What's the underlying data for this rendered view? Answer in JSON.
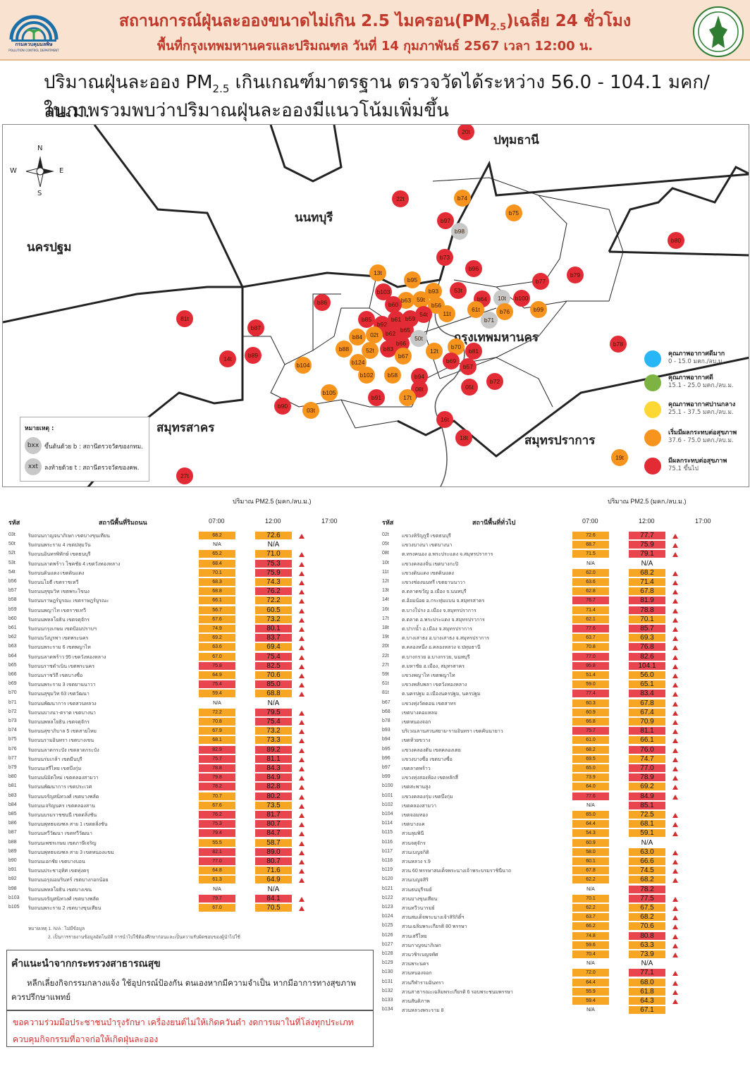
{
  "header": {
    "title": "สถานการณ์ฝุ่นละอองขนาดไม่เกิน 2.5 ไมครอน(PM2.5)เฉลี่ย 24 ชั่วโมง",
    "title_pre": "สถานการณ์ฝุ่นละอองขนาดไม่เกิน 2.5 ไมครอน(PM",
    "title_sub": "2.5",
    "title_post": ")เฉลี่ย 24 ชั่วโมง",
    "subtitle": "พื้นที่กรุงเทพมหานครและปริมณฑล วันที่ 14 กุมภาพันธ์ 2567 เวลา 12:00 น.",
    "logo_left_text": "กรมควบคุมมลพิษ",
    "logo_left_sub": "POLLUTION CONTROL DEPARTMENT"
  },
  "summary": {
    "line1_pre": "ปริมาณฝุ่นละออง PM",
    "line1_sub": "2.5",
    "line1_post": " เกินเกณฑ์มาตรฐาน ตรวจวัดได้ระหว่าง 56.0 - 104.1 มคก/ลบ.ม.",
    "line2": "ในภาพรวมพบว่าปริมาณฝุ่นละอองมีแนวโน้มเพิ่มขึ้น"
  },
  "map": {
    "compass": {
      "n": "N",
      "s": "S",
      "e": "E",
      "w": "W"
    },
    "provinces": [
      {
        "name": "ปทุมธานี"
      },
      {
        "name": "นนทบุรี"
      },
      {
        "name": "นครปฐม"
      },
      {
        "name": "กรุงเทพมหานคร"
      },
      {
        "name": "สมุทรสาคร"
      },
      {
        "name": "สมุทรปราการ"
      }
    ],
    "legend": [
      {
        "label": "คุณภาพอากาศดีมาก",
        "range": "0 - 15.0 มคก./ลบ.ม.",
        "color": "#29b6f6"
      },
      {
        "label": "คุณภาพอากาศดี",
        "range": "15.1 - 25.0 มคก./ลบ.ม.",
        "color": "#7cb342"
      },
      {
        "label": "คุณภาพอากาศปานกลาง",
        "range": "25.1 - 37.5 มคก./ลบ.ม.",
        "color": "#fdd835"
      },
      {
        "label": "เริ่มมีผลกระทบต่อสุขภาพ",
        "range": "37.6 - 75.0 มคก./ลบ.ม.",
        "color": "#f7941d"
      },
      {
        "label": "มีผลกระทบต่อสุขภาพ",
        "range": "75.1 ขึ้นไป",
        "color": "#e32b36"
      }
    ],
    "note": {
      "title": "หมายเหตุ :",
      "bxx": "bxx",
      "bxx_text": "ขึ้นต้นด้วย b : สถานีตรวจวัดของกทม.",
      "xxt": "xxt",
      "xxt_text": "ลงท้ายด้วย t : สถานีตรวจวัดของคพ."
    },
    "stations": [
      "20t",
      "22t",
      "b74",
      "b75",
      "b97",
      "b98",
      "b103",
      "b80",
      "b73",
      "b96",
      "13t",
      "b95",
      "b93",
      "53t",
      "b79",
      "b77",
      "b86",
      "b63",
      "59t",
      "b56",
      "b64",
      "10t",
      "b100",
      "b99",
      "81t",
      "b60",
      "b61",
      "b59",
      "54t",
      "11t",
      "61t",
      "b76",
      "b87",
      "b85",
      "b92",
      "b65",
      "b62",
      "b71",
      "02t",
      "b84",
      "50t",
      "b70",
      "b81",
      "b78",
      "b88",
      "b83",
      "b66",
      "52t",
      "12t",
      "14t",
      "b89",
      "b67",
      "b69",
      "b104",
      "b124",
      "b57",
      "b102",
      "b58",
      "b94",
      "b72",
      "05t",
      "b105",
      "08t",
      "b90",
      "03t",
      "b91",
      "17t",
      "16t",
      "18t",
      "19t",
      "27t"
    ]
  },
  "units": "ปริมาณ PM2.5 (มคก./ลบ.ม.)",
  "roadside": {
    "col_code": "รหัส",
    "col_station": "สถานีพื้นที่ริมถนน",
    "col_07": "07:00",
    "col_12": "12:00",
    "col_17": "17:00",
    "rows": [
      [
        "03t",
        "ริมถนนกาญจนาภิเษก เขตบางขุนเทียน",
        "68.2",
        "72.6"
      ],
      [
        "50t",
        "ริมถนนพระราม 4 เขตปทุมวัน",
        "N/A",
        "N/A"
      ],
      [
        "52t",
        "ริมถนนอินทรพิทักษ์ เขตธนบุรี",
        "65.2",
        "71.0"
      ],
      [
        "53t",
        "ริมถนนลาดพร้าว โชคชัย 4 เขตวังทองหลาง",
        "68.4",
        "75.3"
      ],
      [
        "54t",
        "ริมถนนดินแดง เขตดินแดง",
        "70.1",
        "75.9"
      ],
      [
        "b56",
        "ริมถนนโยธี เขตราชเทวี",
        "68.3",
        "74.3"
      ],
      [
        "b57",
        "ริมถนนสุขุมวิท เขตพระโขนง",
        "68.8",
        "76.2"
      ],
      [
        "b58",
        "ริมถนนราษฎร์บูรณะ เขตราษฎร์บูรณะ",
        "66.1",
        "72.2"
      ],
      [
        "b59",
        "ริมถนนพญาไท เขตราชเทวี",
        "56.7",
        "60.5"
      ],
      [
        "b60",
        "ริมถนนพหลโยธิน เขตจตุจักร",
        "67.6",
        "73.2"
      ],
      [
        "b61",
        "ริมถนนกรุงเกษม เขตป้อมปราบฯ",
        "74.9",
        "80.1"
      ],
      [
        "b62",
        "ริมถนนวังบูรพา เขตพระนคร",
        "69.2",
        "83.7"
      ],
      [
        "b63",
        "ริมถนนพระราม 6 เขตพญาไท",
        "63.6",
        "69.4"
      ],
      [
        "b64",
        "ริมถนนลาดพร้าว 95 เขตวังทองหลาง",
        "67.0",
        "75.4"
      ],
      [
        "b65",
        "ริมถนนราชดำเนิน เขตพระนคร",
        "75.8",
        "82.5"
      ],
      [
        "b66",
        "ริมถนนราชวิถี เขตบางซื่อ",
        "64.9",
        "70.6"
      ],
      [
        "b69",
        "ริมถนนพระราม 3 เขตยานนาวา",
        "75.4",
        "85.0"
      ],
      [
        "b70",
        "ริมถนนสุขุมวิท 63 เขตวัฒนา",
        "59.4",
        "68.8"
      ],
      [
        "b71",
        "ริมถนนพัฒนาการ เขตสวนหลวง",
        "N/A",
        "N/A"
      ],
      [
        "b72",
        "ริมถนนบางนา-ตราด เขตบางนา",
        "72.2",
        "79.5"
      ],
      [
        "b73",
        "ริมถนนพหลโยธิน เขตจตุจักร",
        "70.8",
        "75.4"
      ],
      [
        "b74",
        "ริมถนนสุขาภิบาล 5 เขตสายไหม",
        "67.9",
        "73.2"
      ],
      [
        "b75",
        "ริมถนนรามอินทรา เขตบางเขน",
        "68.1",
        "73.3"
      ],
      [
        "b76",
        "ริมถนนลาดกระบัง เขตลาดกระบัง",
        "82.9",
        "89.2"
      ],
      [
        "b77",
        "ริมถนนร่มเกล้า เขตมีนบุรี",
        "75.7",
        "81.1"
      ],
      [
        "b79",
        "ริมถนนเสรีไทย เขตบึงกุ่ม",
        "78.8",
        "84.3"
      ],
      [
        "b80",
        "ริมถนนนิมิตใหม่ เขตคลองสามวา",
        "79.8",
        "84.9"
      ],
      [
        "b81",
        "ริมถนนพัฒนาการ เขตประเวศ",
        "78.2",
        "82.8"
      ],
      [
        "b83",
        "ริมถนนจรัญสนิทวงศ์ เขตบางพลัด",
        "70.7",
        "80.2"
      ],
      [
        "b84",
        "ริมถนนเจริญนคร เขตคลองสาน",
        "67.6",
        "73.5"
      ],
      [
        "b85",
        "ริมถนนบรมราชชนนี เขตตลิ่งชัน",
        "76.2",
        "81.7"
      ],
      [
        "b86",
        "ริมถนนพุทธมณฑล สาย 1 เขตตลิ่งชัน",
        "75.3",
        "80.7"
      ],
      [
        "b87",
        "ริมถนนทวีวัฒนา เขตทวีวัฒนา",
        "79.4",
        "84.7"
      ],
      [
        "b88",
        "ริมถนนเพชรเกษม เขตภาษีเจริญ",
        "55.5",
        "58.7"
      ],
      [
        "b89",
        "ริมถนนพุทธมณฑล สาย 3 เขตหนองแขม",
        "82.1",
        "89.0"
      ],
      [
        "b90",
        "ริมถนนเอกชัย เขตบางบอน",
        "77.0",
        "80.7"
      ],
      [
        "b91",
        "ริมถนนประชาอุทิศ เขตทุ่งครุ",
        "64.8",
        "71.6"
      ],
      [
        "b92",
        "ริมถนนอรุณอมรินทร์ เขตบางกอกน้อย",
        "61.3",
        "64.9"
      ],
      [
        "b98",
        "ริมถนนพหลโยธิน เขตบางเขน",
        "N/A",
        "N/A"
      ],
      [
        "b103",
        "ริมถนนจรัญสนิทวงศ์ เขตบางพลัด",
        "79.7",
        "84.1"
      ],
      [
        "b105",
        "ริมถนนพระราม 2 เขตบางขุนเทียน",
        "67.0",
        "70.5"
      ]
    ],
    "footnote1": "หมายเหตุ 1. N/A : ไม่มีข้อมูล",
    "footnote2": "2. เป็นการรายงานข้อมูลอัตโนมัติ การนำไปใช้ต้องศึกษาก่อนและเป็นความรับผิดชอบของผู้นำไปใช้"
  },
  "general": {
    "col_code": "รหัส",
    "col_station": "สถานีพื้นที่ทั่วไป",
    "col_07": "07:00",
    "col_12": "12:00",
    "col_17": "17:00",
    "rows": [
      [
        "02t",
        "แขวงหิรัญรูจี เขตธนบุรี",
        "72.6",
        "77.7"
      ],
      [
        "05t",
        "แขวงบางนา เขตบางนา",
        "68.7",
        "75.9"
      ],
      [
        "08t",
        "ต.ทรงคนอง อ.พระประแดง จ.สมุทรปราการ",
        "71.5",
        "79.1"
      ],
      [
        "10t",
        "แขวงคลองจั่น เขตบางกะปิ",
        "N/A",
        "N/A"
      ],
      [
        "11t",
        "แขวงดินแดง เขตดินแดง",
        "62.0",
        "68.2"
      ],
      [
        "12t",
        "แขวงช่องนนทรี เขตยานนาวา",
        "63.6",
        "71.4"
      ],
      [
        "13t",
        "ต.ตลาดขวัญ อ.เมือง จ.นนทบุรี",
        "62.8",
        "67.8"
      ],
      [
        "14t",
        "ต.อ้อมน้อย อ.กระทุ่มแบน จ.สมุทรสาคร",
        "76.7",
        "81.9"
      ],
      [
        "16t",
        "ต.บางโปรง อ.เมือง จ.สมุทรปราการ",
        "71.4",
        "78.8"
      ],
      [
        "17t",
        "ต.ตลาด อ.พระประแดง จ.สมุทรปราการ",
        "62.1",
        "70.1"
      ],
      [
        "18t",
        "ต.ปากน้ำ อ.เมือง จ.สมุทรปราการ",
        "77.6",
        "85.7"
      ],
      [
        "19t",
        "ต.บางเสาธง อ.บางเสาธง จ.สมุทรปราการ",
        "63.7",
        "69.3"
      ],
      [
        "20t",
        "ต.คลองหนึ่ง อ.คลองหลวง จ.ปทุมธานี",
        "70.8",
        "76.8"
      ],
      [
        "22t",
        "ต.บางกรวย อ.บางกรวย, นนทบุรี",
        "77.0",
        "82.6"
      ],
      [
        "27t",
        "ต.มหาชัย อ.เมือง, สมุทรสาคร",
        "95.8",
        "104.1"
      ],
      [
        "59t",
        "แขวงพญาไท เขตพญาไท",
        "51.4",
        "56.0"
      ],
      [
        "61t",
        "แขวงพลับพลา เขตวังทองหลาง",
        "59.0",
        "65.1"
      ],
      [
        "81t",
        "ต.นครปฐม อ.เมืองนครปฐม, นครปฐม",
        "77.4",
        "83.4"
      ],
      [
        "b67",
        "แขวงทุ่งวัดดอน เขตสาทร",
        "60.3",
        "67.8"
      ],
      [
        "b68",
        "เขตบางคอแหลม",
        "60.9",
        "67.4"
      ],
      [
        "b78",
        "เขตหนองจอก",
        "66.8",
        "70.9"
      ],
      [
        "b93",
        "บริเวณลานสวนสยาม-รามอินทรา เขตคันนายาว",
        "75.7",
        "81.1"
      ],
      [
        "b94",
        "เขตห้วยขวาง",
        "61.0",
        "66.1"
      ],
      [
        "b95",
        "แขวงคลองตัน เขตคลองเตย",
        "68.2",
        "76.0"
      ],
      [
        "b96",
        "แขวงบางซื่อ เขตบางซื่อ",
        "69.5",
        "74.7"
      ],
      [
        "b97",
        "เขตลาดพร้าว",
        "65.0",
        "77.0"
      ],
      [
        "b99",
        "แขวงทุ่งสองห้อง เขตหลักสี่",
        "73.9",
        "78.9"
      ],
      [
        "b100",
        "เขตสะพานสูง",
        "64.0",
        "69.2"
      ],
      [
        "b101",
        "แขวงคลองกุ่ม เขตบึงกุ่ม",
        "77.6",
        "84.9"
      ],
      [
        "b102",
        "เขตคลองสามวา",
        "N/A",
        "85.1"
      ],
      [
        "b104",
        "เขตจอมทอง",
        "65.0",
        "72.5"
      ],
      [
        "b114",
        "เขตบางแค",
        "64.4",
        "68.1"
      ],
      [
        "b115",
        "สวนลุมพินี",
        "54.3",
        "59.1"
      ],
      [
        "b116",
        "สวนจตุจักร",
        "60.9",
        "N/A"
      ],
      [
        "b117",
        "สวนเบญจกิติ",
        "58.0",
        "63.0"
      ],
      [
        "b118",
        "สวนหลวง ร.9",
        "60.1",
        "66.6"
      ],
      [
        "b119",
        "สวน 60 พรรษาสมเด็จพระนางเจ้าพระบรมราชินีนาถ",
        "67.8",
        "74.5"
      ],
      [
        "b120",
        "สวนเบญจสิริ",
        "62.2",
        "68.2"
      ],
      [
        "b121",
        "สวนธนบุรีรมย์",
        "N/A",
        "78.2"
      ],
      [
        "b122",
        "สวนบางขุนเทียน",
        "70.1",
        "77.5"
      ],
      [
        "b123",
        "สวนทวีวนารมย์",
        "62.2",
        "67.5"
      ],
      [
        "b124",
        "สวนสมเด็จพระนางเจ้าสิริกิติ์ฯ",
        "63.7",
        "68.2"
      ],
      [
        "b125",
        "สวนเฉลิมพระเกียรติ 80 พรรษา",
        "66.2",
        "70.6"
      ],
      [
        "b126",
        "สวนเสรีไทย",
        "74.8",
        "80.8"
      ],
      [
        "b127",
        "สวนกาญจนาภิเษก",
        "59.6",
        "63.3"
      ],
      [
        "b128",
        "สวนวชิรเบญจทัศ",
        "70.4",
        "73.9"
      ],
      [
        "b129",
        "สวนพระนคร",
        "N/A",
        "N/A"
      ],
      [
        "b130",
        "สวนหนองจอก",
        "72.0",
        "77.1"
      ],
      [
        "b131",
        "สวนกีฬารามอินทรา",
        "64.4",
        "68.0"
      ],
      [
        "b132",
        "สวนสาธารณะเฉลิมพระเกียรติ 6 รอบพระชนมพรรษา",
        "55.9",
        "61.8"
      ],
      [
        "b133",
        "สวนสันติภาพ",
        "59.4",
        "64.3"
      ],
      [
        "b134",
        "สวนหลวงพระราม 8",
        "N/A",
        "67.1"
      ]
    ]
  },
  "advice": {
    "title": "คำแนะนำจากกระทรวงสาธารณสุข",
    "text": "หลีกเลี่ยงกิจกรรมกลางแจ้ง ใช้อุปกรณ์ป้องกัน ตนเองหากมีความจำเป็น หากมีอาการทางสุขภาพ ควรปรึกษาแพทย์"
  },
  "warning": {
    "line1": "ขอความร่วมมือประชาชนบำรุงรักษา เครื่องยนต์ไม่ให้เกิดควันดำ งดการเผาในที่โล่งทุกประเภท",
    "line2": "ควบคุมกิจกรรมที่อาจก่อให้เกิดฝุ่นละออง"
  },
  "colors": {
    "orange": "#f7941d",
    "red": "#e32b36",
    "gray": "#c8c8c8",
    "cell_orange": "#f6a623",
    "cell_red": "#e8454f"
  }
}
